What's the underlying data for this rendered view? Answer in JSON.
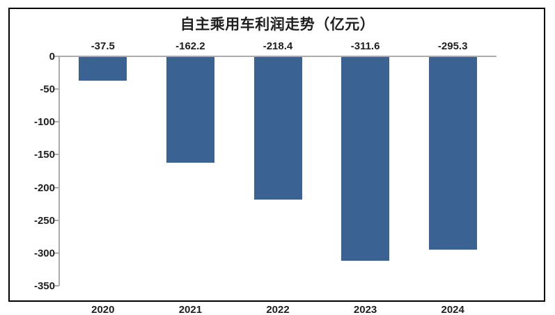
{
  "chart_data": {
    "type": "bar",
    "title": "自主乘用车利润走势（亿元）",
    "categories": [
      "2020",
      "2021",
      "2022",
      "2023",
      "2024"
    ],
    "values": [
      -37.5,
      -162.2,
      -218.4,
      -311.6,
      -295.3
    ],
    "data_labels": [
      "-37.5",
      "-162.2",
      "-218.4",
      "-311.6",
      "-295.3"
    ],
    "ylim": [
      -350,
      0
    ],
    "yticks": [
      0,
      -50,
      -100,
      -150,
      -200,
      -250,
      -300,
      -350
    ],
    "ytick_labels": [
      "0",
      "-50",
      "-100",
      "-150",
      "-200",
      "-250",
      "-300",
      "-350"
    ],
    "grid": false,
    "legend": "none",
    "bar_color": "#3a6293",
    "axis_color": "#ababab",
    "text_color": "#1f1f1f",
    "background_color": "#ffffff",
    "frame_color": "#000000"
  }
}
